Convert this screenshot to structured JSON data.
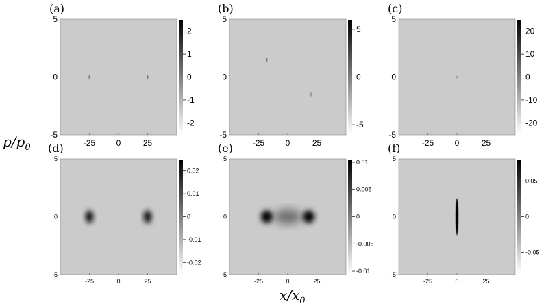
{
  "figure": {
    "ylabel": "p/p",
    "ylabel_sub": "0",
    "xlabel": "x/x",
    "xlabel_sub": "0"
  },
  "colors": {
    "background": "#cbcbcb",
    "mark": "#000000",
    "colorbar_top": "#000000",
    "colorbar_bottom": "#ffffff"
  },
  "chart_data": [
    {
      "id": "a",
      "panel_label": "(a)",
      "type": "heatmap",
      "xlim": [
        -50,
        50
      ],
      "ylim": [
        -5,
        5
      ],
      "xticks": [
        "-25",
        "0",
        "25"
      ],
      "xtick_values": [
        -25,
        0,
        25
      ],
      "yticks": [
        "5",
        "0",
        "-5"
      ],
      "ytick_values": [
        5,
        0,
        -5
      ],
      "colorbar": {
        "ticks": [
          "2",
          "1",
          "0",
          "-1",
          "-2"
        ],
        "values": [
          2,
          1,
          0,
          -1,
          -2
        ],
        "range": [
          -2.5,
          2.5
        ]
      },
      "blobs": [
        {
          "x": -25,
          "y": 0,
          "sx": 0.35,
          "sy": 0.2,
          "v": 0.55
        },
        {
          "x": 25,
          "y": 0,
          "sx": 0.35,
          "sy": 0.2,
          "v": 0.55
        }
      ]
    },
    {
      "id": "b",
      "panel_label": "(b)",
      "type": "heatmap",
      "xlim": [
        -50,
        50
      ],
      "ylim": [
        -5,
        5
      ],
      "xticks": [
        "-25",
        "0",
        "25"
      ],
      "xtick_values": [
        -25,
        0,
        25
      ],
      "yticks": [
        "5",
        "0",
        "-5"
      ],
      "ytick_values": [
        5,
        0,
        -5
      ],
      "colorbar": {
        "ticks": [
          "5",
          "0",
          "-5"
        ],
        "values": [
          5,
          0,
          -5
        ],
        "range": [
          -6,
          6
        ]
      },
      "blobs": [
        {
          "x": -18,
          "y": 1.5,
          "sx": 0.3,
          "sy": 0.18,
          "v": 0.6
        },
        {
          "x": 20,
          "y": -1.5,
          "sx": 0.3,
          "sy": 0.18,
          "v": 0.4
        }
      ]
    },
    {
      "id": "c",
      "panel_label": "(c)",
      "type": "heatmap",
      "xlim": [
        -50,
        50
      ],
      "ylim": [
        -5,
        5
      ],
      "xticks": [
        "-25",
        "0",
        "25"
      ],
      "xtick_values": [
        -25,
        0,
        25
      ],
      "yticks": [
        "5",
        "0",
        "-5"
      ],
      "ytick_values": [
        5,
        0,
        -5
      ],
      "colorbar": {
        "ticks": [
          "20",
          "10",
          "0",
          "-10",
          "-20"
        ],
        "values": [
          20,
          10,
          0,
          -10,
          -20
        ],
        "range": [
          -25,
          25
        ]
      },
      "blobs": [
        {
          "x": 0,
          "y": 0,
          "sx": 0.25,
          "sy": 0.12,
          "v": 0.35
        }
      ]
    },
    {
      "id": "d",
      "panel_label": "(d)",
      "type": "heatmap",
      "xlim": [
        -50,
        50
      ],
      "ylim": [
        -5,
        5
      ],
      "xticks": [
        "-25",
        "0",
        "25"
      ],
      "xtick_values": [
        -25,
        0,
        25
      ],
      "yticks": [
        "5",
        "0",
        "-5"
      ],
      "ytick_values": [
        5,
        0,
        -5
      ],
      "colorbar": {
        "ticks": [
          "0.02",
          "0.01",
          "0",
          "-0.01",
          "-0.02"
        ],
        "values": [
          0.02,
          0.01,
          0,
          -0.01,
          -0.02
        ],
        "range": [
          -0.025,
          0.025
        ]
      },
      "blobs": [
        {
          "x": -25,
          "y": 0,
          "sx": 3.2,
          "sy": 0.55,
          "v": 1
        },
        {
          "x": 25,
          "y": 0,
          "sx": 3.2,
          "sy": 0.55,
          "v": 1
        }
      ]
    },
    {
      "id": "e",
      "panel_label": "(e)",
      "type": "heatmap",
      "xlim": [
        -50,
        50
      ],
      "ylim": [
        -5,
        5
      ],
      "xticks": [
        "-25",
        "0",
        "25"
      ],
      "xtick_values": [
        -25,
        0,
        25
      ],
      "yticks": [
        "5",
        "0",
        "-5"
      ],
      "ytick_values": [
        5,
        0,
        -5
      ],
      "colorbar": {
        "ticks": [
          "0.01",
          "0.005",
          "0",
          "-0.005",
          "-0.01"
        ],
        "values": [
          0.01,
          0.005,
          0,
          -0.005,
          -0.01
        ],
        "range": [
          -0.0105,
          0.0105
        ]
      },
      "blobs": [
        {
          "x": -18,
          "y": 0,
          "sx": 5,
          "sy": 0.55,
          "v": 1
        },
        {
          "x": 18,
          "y": 0,
          "sx": 5,
          "sy": 0.55,
          "v": 1
        },
        {
          "x": 0,
          "y": 0,
          "sx": 12,
          "sy": 0.6,
          "v": 0.5
        }
      ]
    },
    {
      "id": "f",
      "panel_label": "(f)",
      "type": "heatmap",
      "xlim": [
        -50,
        50
      ],
      "ylim": [
        -5,
        5
      ],
      "xticks": [
        "-25",
        "0",
        "25"
      ],
      "xtick_values": [
        -25,
        0,
        25
      ],
      "yticks": [
        "5",
        "0",
        "-5"
      ],
      "ytick_values": [
        5,
        0,
        -5
      ],
      "colorbar": {
        "ticks": [
          "0.05",
          "0",
          "-0.05"
        ],
        "values": [
          0.05,
          0,
          -0.05
        ],
        "range": [
          -0.08,
          0.08
        ]
      },
      "blobs": [
        {
          "x": 0,
          "y": 0,
          "sx": 1.2,
          "sy": 1.6,
          "v": 1
        }
      ]
    }
  ]
}
